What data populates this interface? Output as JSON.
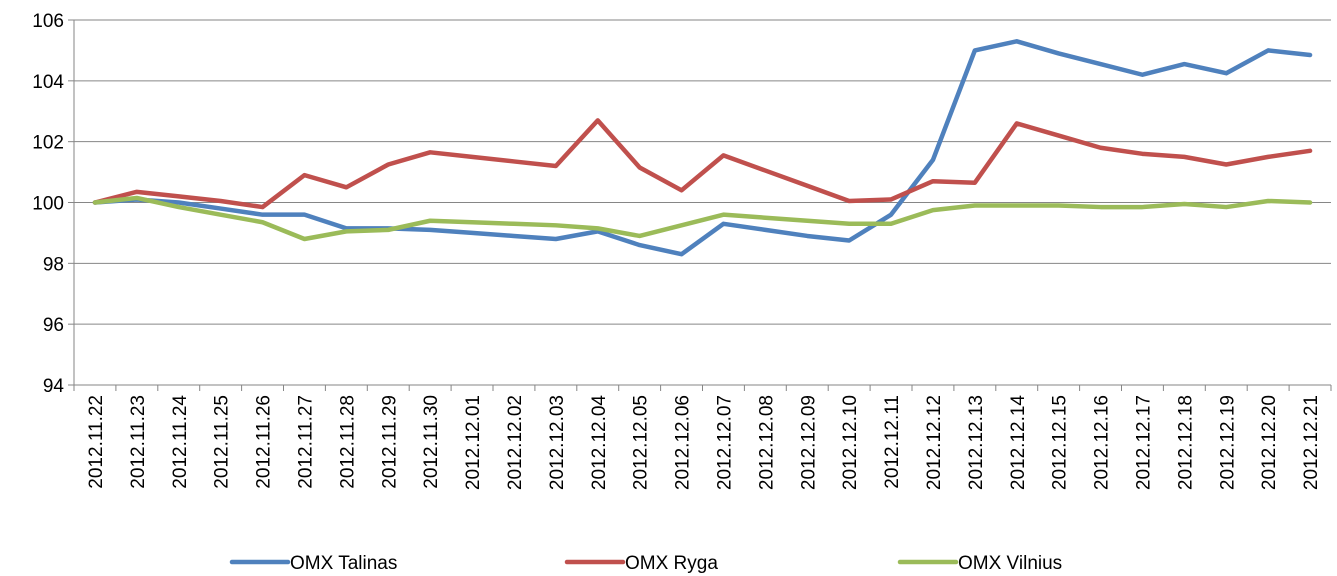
{
  "chart_data": {
    "type": "line",
    "categories": [
      "2012.11.22",
      "2012.11.23",
      "2012.11.24",
      "2012.11.25",
      "2012.11.26",
      "2012.11.27",
      "2012.11.28",
      "2012.11.29",
      "2012.11.30",
      "2012.12.01",
      "2012.12.02",
      "2012.12.03",
      "2012.12.04",
      "2012.12.05",
      "2012.12.06",
      "2012.12.07",
      "2012.12.08",
      "2012.12.09",
      "2012.12.10",
      "2012.12.11",
      "2012.12.12",
      "2012.12.13",
      "2012.12.14",
      "2012.12.15",
      "2012.12.16",
      "2012.12.17",
      "2012.12.18",
      "2012.12.19",
      "2012.12.20",
      "2012.12.21"
    ],
    "series": [
      {
        "name": "OMX Talinas",
        "color": "#4f81bd",
        "values": [
          100,
          100.1,
          100,
          99.8,
          99.6,
          99.6,
          99.15,
          99.15,
          99.1,
          99,
          98.9,
          98.8,
          99.05,
          98.6,
          98.3,
          99.3,
          99.1,
          98.9,
          98.75,
          99.6,
          101.4,
          105,
          105.3,
          104.9,
          104.55,
          104.2,
          104.55,
          104.25,
          105,
          104.85
        ]
      },
      {
        "name": "OMX Ryga",
        "color": "#c0504d",
        "values": [
          100,
          100.35,
          100.2,
          100.05,
          99.85,
          100.9,
          100.5,
          101.25,
          101.65,
          101.5,
          101.35,
          101.2,
          102.7,
          101.15,
          100.4,
          101.55,
          101.05,
          100.55,
          100.05,
          100.1,
          100.7,
          100.65,
          102.6,
          102.2,
          101.8,
          101.6,
          101.5,
          101.25,
          101.5,
          101.7
        ]
      },
      {
        "name": "OMX Vilnius",
        "color": "#9bbb59",
        "values": [
          100,
          100.15,
          99.85,
          99.6,
          99.35,
          98.8,
          99.05,
          99.1,
          99.4,
          99.35,
          99.3,
          99.25,
          99.15,
          98.9,
          99.25,
          99.6,
          99.5,
          99.4,
          99.3,
          99.3,
          99.75,
          99.9,
          99.9,
          99.9,
          99.85,
          99.85,
          99.95,
          99.85,
          100.05,
          100
        ]
      }
    ],
    "ylim": [
      94,
      106
    ],
    "yticks": [
      94,
      96,
      98,
      100,
      102,
      104,
      106
    ],
    "grid": true,
    "legend": "bottom"
  }
}
